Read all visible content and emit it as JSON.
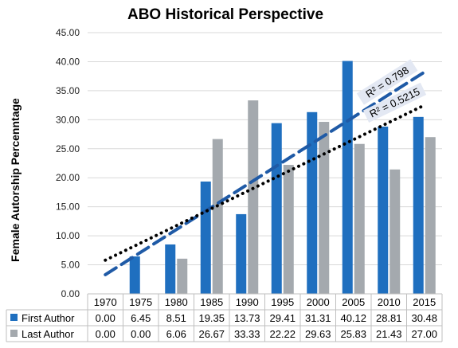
{
  "chart_data": {
    "type": "bar",
    "title": "ABO Historical Perspective",
    "ylabel": "Female Autorship Percenntage",
    "ylim": [
      0,
      45
    ],
    "yticks": [
      "0.00",
      "5.00",
      "10.00",
      "15.00",
      "20.00",
      "25.00",
      "30.00",
      "35.00",
      "40.00",
      "45.00"
    ],
    "categories": [
      "1970",
      "1975",
      "1980",
      "1985",
      "1990",
      "1995",
      "2000",
      "2005",
      "2010",
      "2015"
    ],
    "series": [
      {
        "name": "First Author",
        "color": "#1f6fbf",
        "values": [
          0.0,
          6.45,
          8.51,
          19.35,
          13.73,
          29.41,
          31.31,
          40.12,
          28.81,
          30.48
        ],
        "labels": [
          "0.00",
          "6.45",
          "8.51",
          "19.35",
          "13.73",
          "29.41",
          "31.31",
          "40.12",
          "28.81",
          "30.48"
        ]
      },
      {
        "name": "Last Author",
        "color": "#a4a9ae",
        "values": [
          0.0,
          0.0,
          6.06,
          26.67,
          33.33,
          22.22,
          29.63,
          25.83,
          21.43,
          27.0
        ],
        "labels": [
          "0.00",
          "0.00",
          "6.06",
          "26.67",
          "33.33",
          "22.22",
          "29.63",
          "25.83",
          "21.43",
          "27.00"
        ]
      }
    ],
    "trendlines": [
      {
        "series": "First Author",
        "style": "dashed",
        "color": "#1f5aa6",
        "r2_label": "R² = 0.798",
        "y_start": 3.3,
        "y_end": 38.2
      },
      {
        "series": "Last Author",
        "style": "dotted",
        "color": "#000000",
        "r2_label": "R² = 0.5215",
        "y_start": 5.8,
        "y_end": 32.5
      }
    ],
    "grid": true,
    "data_table": true
  }
}
